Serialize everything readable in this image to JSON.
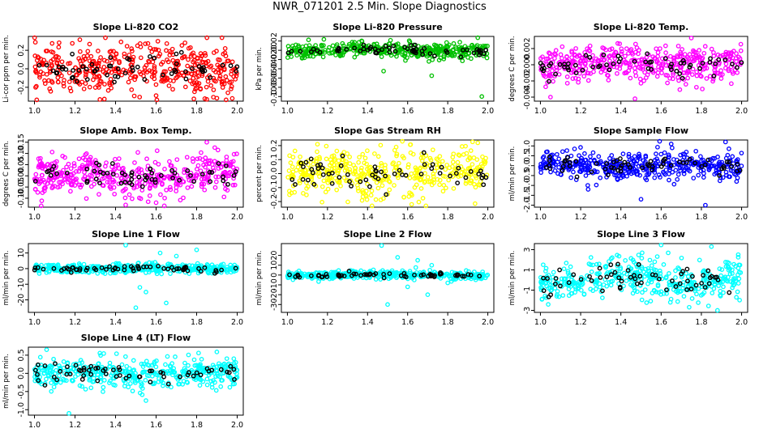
{
  "title": "NWR_071201  2.5 Min. Slope Diagnostics",
  "chart_data": [
    {
      "type": "scatter",
      "title": "Slope Li-820 CO2",
      "ylabel": "Li-cor ppm per min.",
      "color": "#ff0000",
      "xlim": [
        0.97,
        2.03
      ],
      "ylim": [
        -0.35,
        0.35
      ],
      "xticks": [
        "1.0",
        "1.2",
        "1.4",
        "1.6",
        "1.8",
        "2.0"
      ],
      "yticks": [
        -0.2,
        0,
        0.2
      ],
      "ytick_labels": [
        "-0.2",
        "0.0",
        "0.2"
      ],
      "spread": 0.13,
      "amp": 0.03,
      "outliers": [
        [
          1.35,
          0.34
        ],
        [
          1.85,
          -0.33
        ],
        [
          1.6,
          -0.29
        ]
      ]
    },
    {
      "type": "scatter",
      "title": "Slope Li-820 Pressure",
      "ylabel": "kPa per min.",
      "color": "#00c000",
      "xlim": [
        0.97,
        2.03
      ],
      "ylim": [
        -0.11,
        0.03
      ],
      "xticks": [
        "1.0",
        "1.2",
        "1.4",
        "1.6",
        "1.8",
        "2.0"
      ],
      "yticks": [
        -0.1,
        -0.08,
        -0.06,
        -0.04,
        -0.02,
        0,
        0.02
      ],
      "ytick_labels": [
        "-0.10",
        "-0.08",
        "-0.06",
        "-0.04",
        "-0.02",
        "0.00",
        "0.02"
      ],
      "spread": 0.008,
      "amp": 0.002,
      "outliers": [
        [
          1.97,
          -0.1
        ],
        [
          1.72,
          -0.055
        ],
        [
          1.95,
          0.028
        ],
        [
          1.48,
          -0.045
        ]
      ]
    },
    {
      "type": "scatter",
      "title": "Slope Li-820 Temp.",
      "ylabel": "degrees C per min.",
      "color": "#ff00ff",
      "xlim": [
        0.97,
        2.03
      ],
      "ylim": [
        -0.0045,
        0.0035
      ],
      "xticks": [
        "1.0",
        "1.2",
        "1.4",
        "1.6",
        "1.8",
        "2.0"
      ],
      "yticks": [
        -0.004,
        -0.002,
        0,
        0.002
      ],
      "ytick_labels": [
        "-0.004",
        "-0.002",
        "0.000",
        "0.002"
      ],
      "spread": 0.0011,
      "amp": 0.0002,
      "outliers": [
        [
          1.75,
          0.0033
        ],
        [
          1.05,
          -0.004
        ],
        [
          1.47,
          -0.0042
        ]
      ]
    },
    {
      "type": "scatter",
      "title": "Slope Amb. Box Temp.",
      "ylabel": "degrees C per min.",
      "color": "#ff00ff",
      "xlim": [
        0.97,
        2.03
      ],
      "ylim": [
        -0.14,
        0.16
      ],
      "xticks": [
        "1.0",
        "1.2",
        "1.4",
        "1.6",
        "1.8",
        "2.0"
      ],
      "yticks": [
        -0.1,
        -0.05,
        0,
        0.05,
        0.1,
        0.15
      ],
      "ytick_labels": [
        "-0.10",
        "-0.05",
        "0.00",
        "0.05",
        "0.10",
        "0.15"
      ],
      "spread": 0.045,
      "amp": 0.01,
      "outliers": [
        [
          1.85,
          0.15
        ],
        [
          1.45,
          -0.13
        ],
        [
          1.6,
          -0.12
        ]
      ]
    },
    {
      "type": "scatter",
      "title": "Slope Gas Stream RH",
      "ylabel": "percent per min.",
      "color": "#ffff00",
      "xlim": [
        0.97,
        2.03
      ],
      "ylim": [
        -0.24,
        0.24
      ],
      "xticks": [
        "1.0",
        "1.2",
        "1.4",
        "1.6",
        "1.8",
        "2.0"
      ],
      "yticks": [
        -0.2,
        -0.1,
        0,
        0.1,
        0.2
      ],
      "ytick_labels": [
        "-0.2",
        "-0.1",
        "0.0",
        "0.1",
        "0.2"
      ],
      "spread": 0.085,
      "amp": 0.02,
      "outliers": [
        [
          1.62,
          -0.22
        ],
        [
          1.95,
          0.22
        ],
        [
          1.15,
          0.21
        ]
      ]
    },
    {
      "type": "scatter",
      "title": "Slope Sample Flow",
      "ylabel": "ml/min per min.",
      "color": "#0000ff",
      "xlim": [
        0.97,
        2.03
      ],
      "ylim": [
        -2.1,
        1.3
      ],
      "xticks": [
        "1.0",
        "1.2",
        "1.4",
        "1.6",
        "1.8",
        "2.0"
      ],
      "yticks": [
        -2.0,
        -1.5,
        -1.0,
        -0.5,
        0,
        0.5,
        1.0
      ],
      "ytick_labels": [
        "-2.0",
        "-1.5",
        "-1.0",
        "-0.5",
        "0.0",
        "0.5",
        "1.0"
      ],
      "spread": 0.38,
      "amp": 0.1,
      "outliers": [
        [
          1.82,
          -2.0
        ],
        [
          1.92,
          1.2
        ],
        [
          1.5,
          -1.7
        ],
        [
          1.65,
          1.1
        ]
      ]
    },
    {
      "type": "scatter",
      "title": "Slope Line 1 Flow",
      "ylabel": "ml/min per min.",
      "color": "#00ffff",
      "xlim": [
        0.97,
        2.03
      ],
      "ylim": [
        -28,
        16
      ],
      "xticks": [
        "1.0",
        "1.2",
        "1.4",
        "1.6",
        "1.8",
        "2.0"
      ],
      "yticks": [
        -20,
        -10,
        0,
        10
      ],
      "ytick_labels": [
        "-20",
        "-10",
        "0",
        "10"
      ],
      "spread": 1.5,
      "amp": 0.3,
      "outliers": [
        [
          1.45,
          15
        ],
        [
          1.5,
          -25
        ],
        [
          1.65,
          -22
        ],
        [
          1.8,
          12
        ],
        [
          1.55,
          -15
        ],
        [
          1.62,
          10
        ],
        [
          1.7,
          8
        ],
        [
          1.52,
          -12
        ]
      ]
    },
    {
      "type": "scatter",
      "title": "Slope Line 2 Flow",
      "ylabel": "ml/min per min.",
      "color": "#00ffff",
      "xlim": [
        0.97,
        2.03
      ],
      "ylim": [
        -38,
        32
      ],
      "xticks": [
        "1.0",
        "1.2",
        "1.4",
        "1.6",
        "1.8",
        "2.0"
      ],
      "yticks": [
        -30,
        -20,
        -10,
        0,
        10,
        20
      ],
      "ytick_labels": [
        "-30",
        "-20",
        "-10",
        "0",
        "10",
        "20"
      ],
      "spread": 2.0,
      "amp": 0.4,
      "outliers": [
        [
          1.47,
          30
        ],
        [
          1.5,
          -30
        ],
        [
          1.7,
          -20
        ],
        [
          1.55,
          18
        ],
        [
          1.6,
          -12
        ],
        [
          1.65,
          15
        ],
        [
          1.72,
          10
        ],
        [
          1.8,
          -8
        ]
      ]
    },
    {
      "type": "scatter",
      "title": "Slope Line 3 Flow",
      "ylabel": "ml/min per min.",
      "color": "#00ffff",
      "xlim": [
        0.97,
        2.03
      ],
      "ylim": [
        -3.2,
        3.6
      ],
      "xticks": [
        "1.0",
        "1.2",
        "1.4",
        "1.6",
        "1.8",
        "2.0"
      ],
      "yticks": [
        -3,
        -1,
        1,
        3
      ],
      "ytick_labels": [
        "-3",
        "-1",
        "1",
        "3"
      ],
      "spread": 1.1,
      "amp": 0.4,
      "outliers": [
        [
          1.6,
          3.5
        ],
        [
          1.88,
          -3.0
        ],
        [
          1.85,
          3.3
        ]
      ]
    },
    {
      "type": "scatter",
      "title": "Slope Line 4 (LT) Flow",
      "ylabel": "ml/min per min.",
      "color": "#00ffff",
      "xlim": [
        0.97,
        2.03
      ],
      "ylim": [
        -1.15,
        0.72
      ],
      "xticks": [
        "1.0",
        "1.2",
        "1.4",
        "1.6",
        "1.8",
        "2.0"
      ],
      "yticks": [
        -1.0,
        -0.5,
        0,
        0.5
      ],
      "ytick_labels": [
        "-1.0",
        "-0.5",
        "0.0",
        "0.5"
      ],
      "spread": 0.2,
      "amp": 0.05,
      "outliers": [
        [
          1.06,
          0.65
        ],
        [
          1.17,
          -1.1
        ],
        [
          1.55,
          -0.75
        ]
      ]
    }
  ]
}
